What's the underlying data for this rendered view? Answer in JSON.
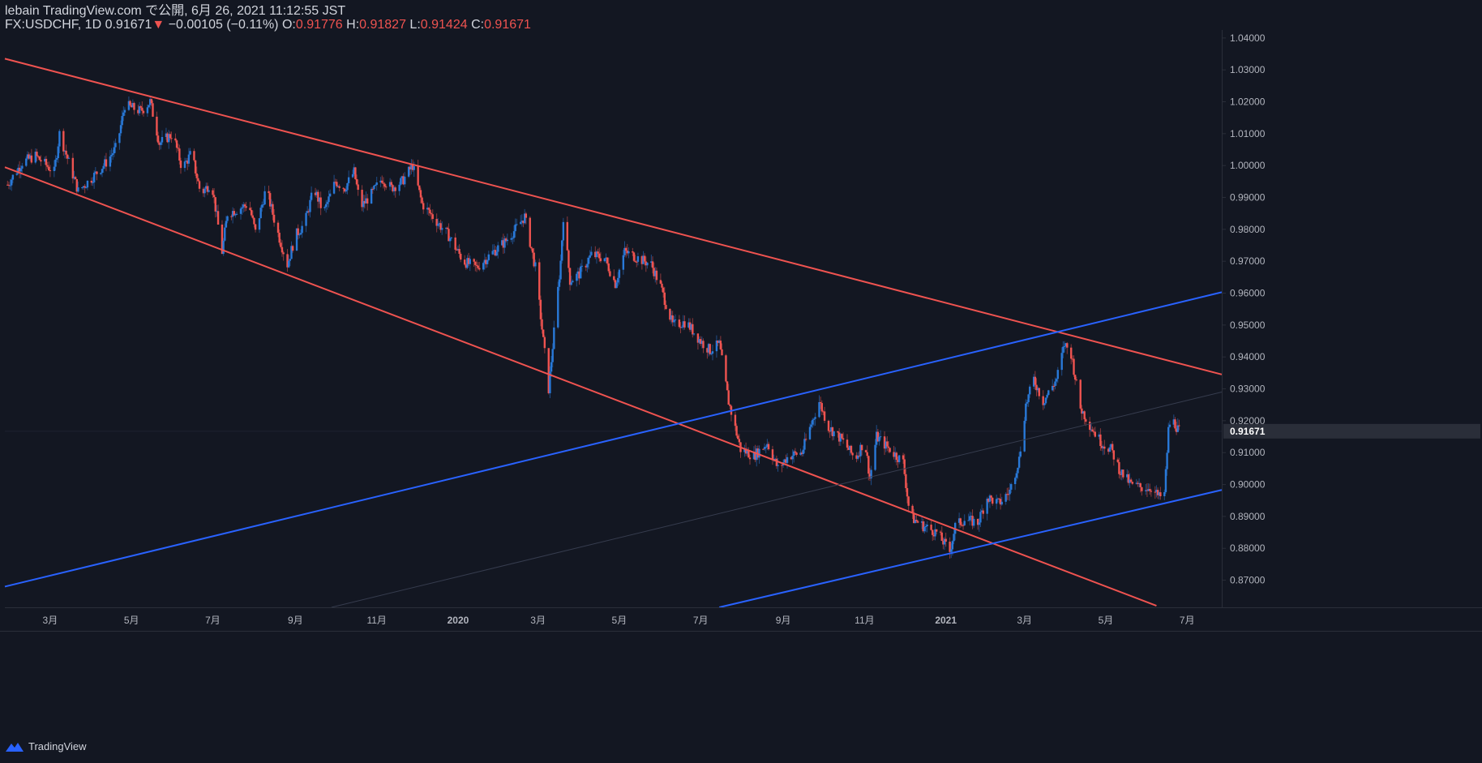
{
  "header": {
    "line1": "lebain TradingView.com で公開, 6月 26, 2021 11:12:55 JST",
    "symbol": "FX:USDCHF, 1D 0.91671",
    "change": "▼",
    "change_text": " −0.00105 (−0.11%) ",
    "o_label": "O:",
    "o_value": "0.91776",
    "h_label": " H:",
    "h_value": "0.91827",
    "l_label": " L:",
    "l_value": "0.91424",
    "c_label": " C:",
    "c_value": "0.91671"
  },
  "footer": {
    "brand": "TradingView"
  },
  "colors": {
    "background": "#131722",
    "up": "#2962ff",
    "up_candle": "#2979d8",
    "down": "#ef5350",
    "grid": "#1e2230",
    "axis_text": "#b2b5be",
    "axis_line": "#2a2e39",
    "price_tag": "#2a2e39"
  },
  "chart_data": {
    "type": "candlestick",
    "title": "FX:USDCHF, 1D",
    "xlabel": "",
    "ylabel": "",
    "ylim": [
      0.8615,
      1.0425
    ],
    "x_range": [
      "2019-01-26",
      "2021-07-27"
    ],
    "y_ticks": [
      "1.04000",
      "1.03000",
      "1.02000",
      "1.01000",
      "1.00000",
      "0.99000",
      "0.98000",
      "0.97000",
      "0.96000",
      "0.95000",
      "0.94000",
      "0.93000",
      "0.92000",
      "0.91000",
      "0.90000",
      "0.89000",
      "0.88000",
      "0.87000"
    ],
    "x_ticks": [
      {
        "date": "2019-03-01",
        "label": "3月"
      },
      {
        "date": "2019-05-01",
        "label": "5月"
      },
      {
        "date": "2019-07-01",
        "label": "7月"
      },
      {
        "date": "2019-09-01",
        "label": "9月"
      },
      {
        "date": "2019-11-01",
        "label": "11月"
      },
      {
        "date": "2020-01-01",
        "label": "2020"
      },
      {
        "date": "2020-03-01",
        "label": "3月"
      },
      {
        "date": "2020-05-01",
        "label": "5月"
      },
      {
        "date": "2020-07-01",
        "label": "7月"
      },
      {
        "date": "2020-09-01",
        "label": "9月"
      },
      {
        "date": "2020-11-01",
        "label": "11月"
      },
      {
        "date": "2021-01-01",
        "label": "2021"
      },
      {
        "date": "2021-03-01",
        "label": "3月"
      },
      {
        "date": "2021-05-01",
        "label": "5月"
      },
      {
        "date": "2021-07-01",
        "label": "7月"
      }
    ],
    "last_price": {
      "value": 0.91671,
      "label": "0.91671"
    },
    "close_series": [
      [
        "2019-01-28",
        0.994
      ],
      [
        "2019-02-08",
        1.001
      ],
      [
        "2019-02-18",
        1.003
      ],
      [
        "2019-03-04",
        0.998
      ],
      [
        "2019-03-08",
        1.01
      ],
      [
        "2019-03-22",
        0.992
      ],
      [
        "2019-04-01",
        0.996
      ],
      [
        "2019-04-12",
        1.001
      ],
      [
        "2019-04-20",
        1.006
      ],
      [
        "2019-04-26",
        1.019
      ],
      [
        "2019-05-08",
        1.017
      ],
      [
        "2019-05-15",
        1.02
      ],
      [
        "2019-05-22",
        1.007
      ],
      [
        "2019-06-01",
        1.01
      ],
      [
        "2019-06-08",
        0.999
      ],
      [
        "2019-06-15",
        1.004
      ],
      [
        "2019-06-22",
        0.991
      ],
      [
        "2019-06-30",
        0.995
      ],
      [
        "2019-07-08",
        0.973
      ],
      [
        "2019-07-12",
        0.985
      ],
      [
        "2019-07-18",
        0.986
      ],
      [
        "2019-07-28",
        0.988
      ],
      [
        "2019-08-02",
        0.979
      ],
      [
        "2019-08-10",
        0.993
      ],
      [
        "2019-08-18",
        0.98
      ],
      [
        "2019-08-26",
        0.969
      ],
      [
        "2019-09-01",
        0.978
      ],
      [
        "2019-09-08",
        0.982
      ],
      [
        "2019-09-15",
        0.993
      ],
      [
        "2019-09-22",
        0.985
      ],
      [
        "2019-10-01",
        0.995
      ],
      [
        "2019-10-08",
        0.993
      ],
      [
        "2019-10-15",
        0.998
      ],
      [
        "2019-10-20",
        0.987
      ],
      [
        "2019-10-28",
        0.991
      ],
      [
        "2019-11-05",
        0.996
      ],
      [
        "2019-11-12",
        0.993
      ],
      [
        "2019-11-20",
        0.995
      ],
      [
        "2019-11-28",
        1.0
      ],
      [
        "2019-12-05",
        0.988
      ],
      [
        "2019-12-15",
        0.983
      ],
      [
        "2019-12-25",
        0.978
      ],
      [
        "2020-01-05",
        0.97
      ],
      [
        "2020-01-15",
        0.968
      ],
      [
        "2020-01-25",
        0.972
      ],
      [
        "2020-02-05",
        0.976
      ],
      [
        "2020-02-13",
        0.98
      ],
      [
        "2020-02-20",
        0.984
      ],
      [
        "2020-02-28",
        0.968
      ],
      [
        "2020-03-05",
        0.945
      ],
      [
        "2020-03-09",
        0.93
      ],
      [
        "2020-03-18",
        0.97
      ],
      [
        "2020-03-20",
        0.984
      ],
      [
        "2020-03-25",
        0.964
      ],
      [
        "2020-04-01",
        0.966
      ],
      [
        "2020-04-10",
        0.972
      ],
      [
        "2020-04-20",
        0.971
      ],
      [
        "2020-04-28",
        0.963
      ],
      [
        "2020-05-05",
        0.973
      ],
      [
        "2020-05-15",
        0.971
      ],
      [
        "2020-05-25",
        0.969
      ],
      [
        "2020-06-01",
        0.962
      ],
      [
        "2020-06-10",
        0.95
      ],
      [
        "2020-06-20",
        0.951
      ],
      [
        "2020-07-01",
        0.945
      ],
      [
        "2020-07-08",
        0.942
      ],
      [
        "2020-07-15",
        0.944
      ],
      [
        "2020-07-22",
        0.926
      ],
      [
        "2020-07-31",
        0.911
      ],
      [
        "2020-08-10",
        0.909
      ],
      [
        "2020-08-20",
        0.913
      ],
      [
        "2020-08-28",
        0.905
      ],
      [
        "2020-09-05",
        0.909
      ],
      [
        "2020-09-15",
        0.91
      ],
      [
        "2020-09-22",
        0.919
      ],
      [
        "2020-09-28",
        0.926
      ],
      [
        "2020-10-05",
        0.918
      ],
      [
        "2020-10-15",
        0.914
      ],
      [
        "2020-10-25",
        0.908
      ],
      [
        "2020-11-01",
        0.914
      ],
      [
        "2020-11-05",
        0.902
      ],
      [
        "2020-11-10",
        0.915
      ],
      [
        "2020-11-20",
        0.911
      ],
      [
        "2020-11-30",
        0.907
      ],
      [
        "2020-12-05",
        0.89
      ],
      [
        "2020-12-15",
        0.887
      ],
      [
        "2020-12-25",
        0.885
      ],
      [
        "2021-01-04",
        0.879
      ],
      [
        "2021-01-08",
        0.887
      ],
      [
        "2021-01-15",
        0.889
      ],
      [
        "2021-01-25",
        0.888
      ],
      [
        "2021-02-01",
        0.896
      ],
      [
        "2021-02-10",
        0.894
      ],
      [
        "2021-02-18",
        0.898
      ],
      [
        "2021-02-25",
        0.908
      ],
      [
        "2021-03-02",
        0.925
      ],
      [
        "2021-03-08",
        0.933
      ],
      [
        "2021-03-15",
        0.926
      ],
      [
        "2021-03-25",
        0.933
      ],
      [
        "2021-03-31",
        0.944
      ],
      [
        "2021-04-05",
        0.941
      ],
      [
        "2021-04-12",
        0.924
      ],
      [
        "2021-04-20",
        0.918
      ],
      [
        "2021-04-28",
        0.913
      ],
      [
        "2021-05-05",
        0.911
      ],
      [
        "2021-05-12",
        0.904
      ],
      [
        "2021-05-20",
        0.9
      ],
      [
        "2021-05-28",
        0.899
      ],
      [
        "2021-06-04",
        0.899
      ],
      [
        "2021-06-10",
        0.896
      ],
      [
        "2021-06-14",
        0.897
      ],
      [
        "2021-06-17",
        0.917
      ],
      [
        "2021-06-19",
        0.921
      ],
      [
        "2021-06-25",
        0.9167
      ]
    ],
    "trend_lines": [
      {
        "color": "#ef5350",
        "from": [
          "2019-01-26",
          1.0335
        ],
        "to": [
          "2021-07-27",
          0.9345
        ]
      },
      {
        "color": "#ef5350",
        "from": [
          "2019-01-26",
          0.9995
        ],
        "to": [
          "2021-06-08",
          0.862
        ]
      },
      {
        "color": "#2962ff",
        "from": [
          "2019-01-26",
          0.868
        ],
        "to": [
          "2021-07-27",
          0.9603
        ]
      },
      {
        "color": "#2962ff",
        "from": [
          "2020-07-15",
          0.8615
        ],
        "to": [
          "2021-07-27",
          0.8983
        ]
      },
      {
        "color": "#363c4e",
        "from": [
          "2019-09-28",
          0.8615
        ],
        "to": [
          "2021-07-27",
          0.929
        ]
      }
    ]
  }
}
